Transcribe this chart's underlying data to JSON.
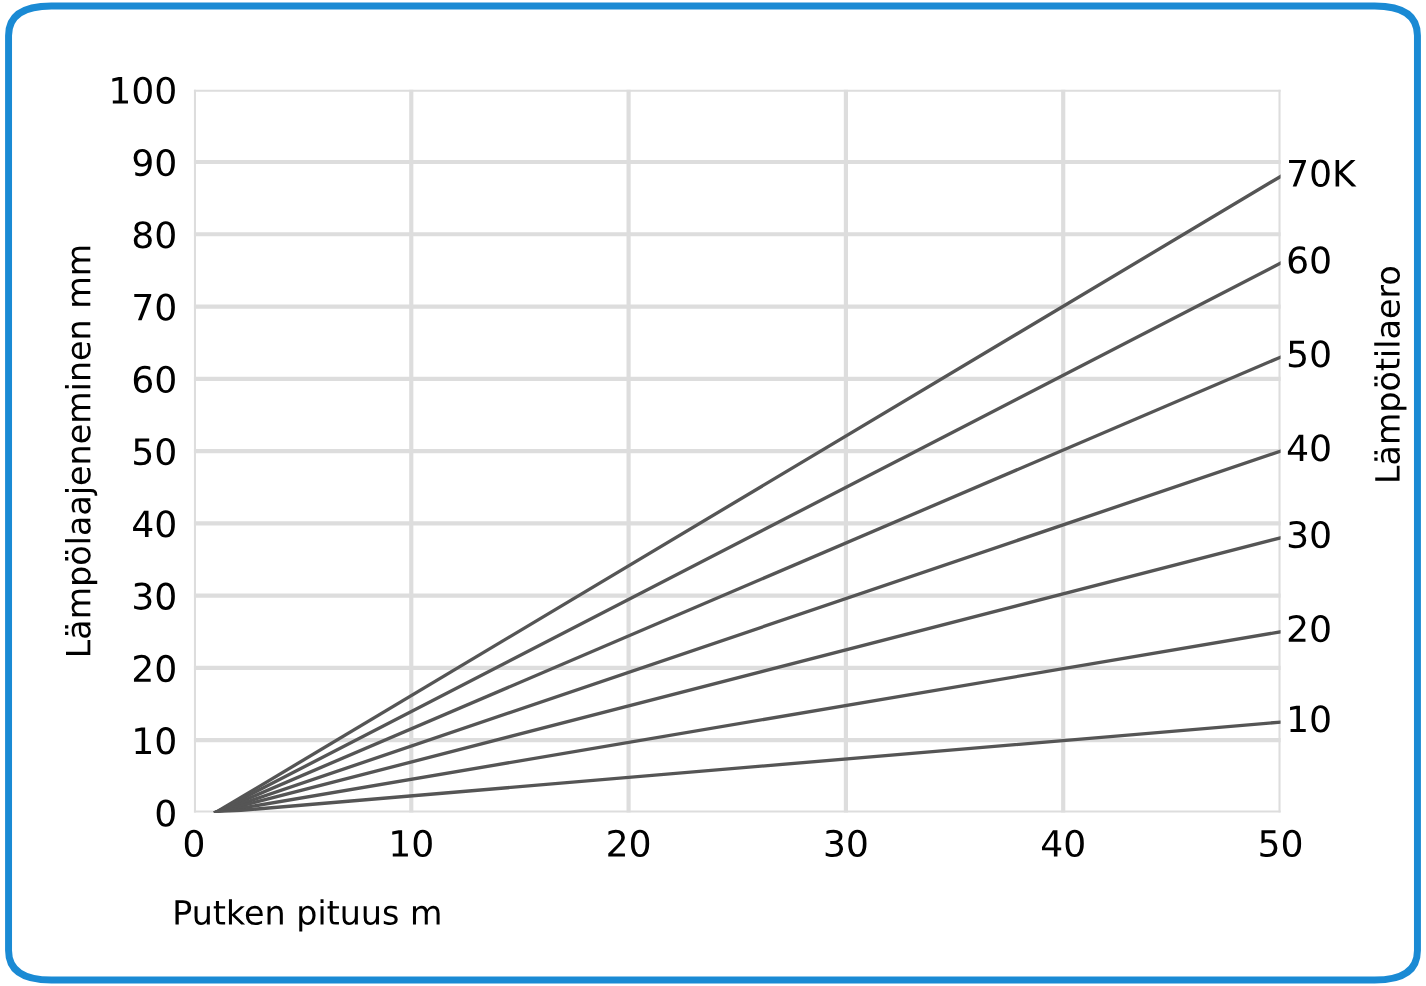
{
  "chart_data": {
    "type": "line",
    "xlabel": "Putken pituus m",
    "ylabel": "Lämpölaajeneminen mm",
    "y2label": "Lämpötilaero",
    "x": [
      1,
      50
    ],
    "series": [
      {
        "name": "70K",
        "color": "#555555",
        "values": [
          0,
          88
        ]
      },
      {
        "name": "60",
        "color": "#555555",
        "values": [
          0,
          76
        ]
      },
      {
        "name": "50",
        "color": "#555555",
        "values": [
          0,
          63
        ]
      },
      {
        "name": "40",
        "color": "#555555",
        "values": [
          0,
          50
        ]
      },
      {
        "name": "30",
        "color": "#555555",
        "values": [
          0,
          38
        ]
      },
      {
        "name": "20",
        "color": "#555555",
        "values": [
          0,
          25
        ]
      },
      {
        "name": "10",
        "color": "#555555",
        "values": [
          0,
          12.5
        ]
      }
    ],
    "xlim": [
      0,
      50
    ],
    "ylim": [
      0,
      100
    ],
    "xticks": [
      0,
      10,
      20,
      30,
      40,
      50
    ],
    "yticks": [
      0,
      10,
      20,
      30,
      40,
      50,
      60,
      70,
      80,
      90,
      100
    ],
    "grid": true,
    "marker": "none",
    "line_style": "solid"
  }
}
